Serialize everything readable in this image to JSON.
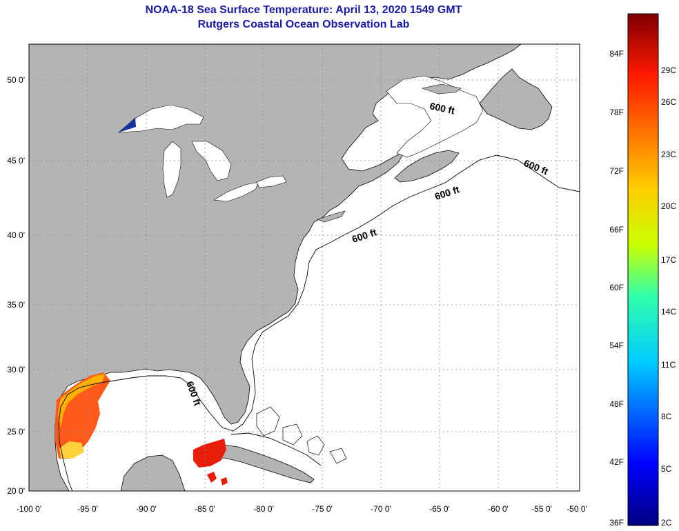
{
  "header": {
    "title": "NOAA-18 Sea Surface Temperature:  April 13, 2020 1549 GMT",
    "subtitle": "Rutgers Coastal Ocean Observation Lab"
  },
  "map": {
    "x_ticks": [
      "-100 0'",
      "-95 0'",
      "-90 0'",
      "-85 0'",
      "-80 0'",
      "-75 0'",
      "-70 0'",
      "-65 0'",
      "-60 0'",
      "-55 0'",
      "-50 0'"
    ],
    "y_ticks": [
      "50 0'",
      "45 0'",
      "40 0'",
      "35 0'",
      "30 0'",
      "25 0'",
      "20 0'"
    ],
    "contour_labels": [
      "600 ft",
      "600 ft",
      "600 ft",
      "600 ft",
      "600 ft"
    ],
    "colors": {
      "land": "#b4b4b4",
      "water": "#ffffff",
      "grid": "#888888"
    }
  },
  "colorbar": {
    "fahrenheit_labels": [
      "84F",
      "78F",
      "72F",
      "66F",
      "60F",
      "54F",
      "48F",
      "42F",
      "36F"
    ],
    "celsius_labels": [
      "29C",
      "26C",
      "23C",
      "20C",
      "17C",
      "14C",
      "11C",
      "8C",
      "5C",
      "2C"
    ]
  }
}
